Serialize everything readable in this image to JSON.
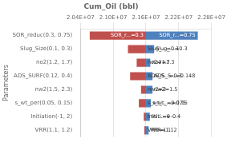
{
  "chart_data": {
    "type": "bar",
    "orientation": "horizontal",
    "title": "Cum_Oil (bbl)",
    "ylabel": "Parameters",
    "categories": [
      "SOR_reduc(0.3, 0.75)",
      "Slug_Size(0.1, 0.3)",
      "no2(1.2, 1.7)",
      "ADS_SURF(0.12, 0.4)",
      "nw2(1.5, 2.3)",
      "s_wt_per(0.05, 0.15)",
      "Initiation(-1, 2)",
      "VRR(1.1, 1.2)"
    ],
    "base": 21600000,
    "series": [
      {
        "color": "#c0504d",
        "values": [
          20570000,
          21270000,
          21430000,
          21310000,
          21510000,
          21470000,
          21560000,
          21570000
        ],
        "labels": [
          "SOR_r...=0.3",
          "Slug_...=0.1",
          "no2=1.7",
          "ADS_S...=0.3",
          "nw2=2",
          "s_wt_...=0.075",
          "Initi...=0",
          "VRR=1.1"
        ]
      },
      {
        "color": "#4f81bd",
        "values": [
          22550000,
          21750000,
          21680000,
          21720000,
          21720000,
          21690000,
          21670000,
          21650000
        ],
        "labels": [
          "SOR_r...=0.75",
          "Slug_...=0.3",
          "no2=1.3",
          "ADS_S...=0.148",
          "nw2=1.5",
          "s_wt_...=0.15",
          "Initi...=-0.4",
          "VRR=1.12"
        ]
      }
    ],
    "xlim": [
      20400000,
      22800000
    ],
    "xticks": [
      {
        "value": 20400000,
        "label": "2.04E+07"
      },
      {
        "value": 21000000,
        "label": "2.10E+07"
      },
      {
        "value": 21600000,
        "label": "2.16E+07"
      },
      {
        "value": 22200000,
        "label": "2.22E+07"
      },
      {
        "value": 22800000,
        "label": "2.28E+07"
      }
    ],
    "grid": "x"
  }
}
